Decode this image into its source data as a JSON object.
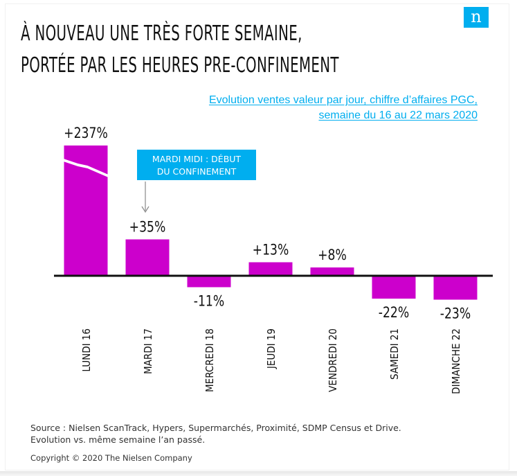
{
  "logo": {
    "glyph": "n",
    "color": "#00aeef"
  },
  "title": {
    "line1": "À NOUVEAU UNE TRÈS FORTE SEMAINE,",
    "line2": "PORTÉE PAR LES HEURES PRE-CONFINEMENT"
  },
  "subtitle": {
    "line1": "Evolution ventes valeur par jour, chiffre d’affaires PGC,",
    "line2": "semaine du 16 au 22 mars 2020"
  },
  "callout": {
    "line1": "MARDI MIDI : DÉBUT",
    "line2": "DU CONFINEMENT",
    "color": "#00aeef"
  },
  "chart_data": {
    "type": "bar",
    "categories": [
      "LUNDI 16",
      "MARDI 17",
      "MERCREDI 18",
      "JEUDI 19",
      "VENDREDI 20",
      "SAMEDI 21",
      "DIMANCHE 22"
    ],
    "values": [
      237,
      35,
      -11,
      13,
      8,
      -22,
      -23
    ],
    "value_labels": [
      "+237%",
      "+35%",
      "-11%",
      "+13%",
      "+8%",
      "-22%",
      "-23%"
    ],
    "unit": "%",
    "axis_break_on": "LUNDI 16",
    "bar_color": "#cc00cc"
  },
  "footer": {
    "source_line1": "Source : Nielsen ScanTrack, Hypers, Supermarchés, Proximité, SDMP Census et Drive.",
    "source_line2": "Evolution vs. même semaine l’an passé.",
    "copyright": "Copyright © 2020 The Nielsen Company"
  }
}
